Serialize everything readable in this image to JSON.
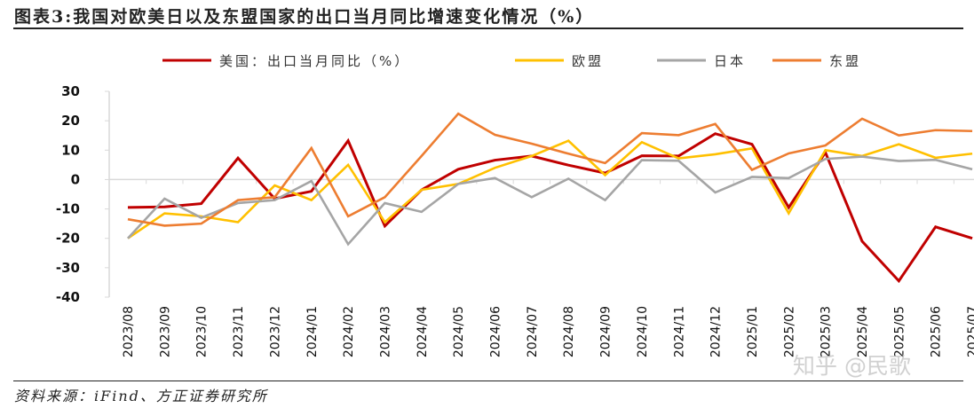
{
  "title": "图表3:我国对欧美日以及东盟国家的出口当月同比增速变化情况（%）",
  "source": "资料来源：iFind、方正证券研究所",
  "watermark": "知乎 @民歌",
  "chart_data": {
    "type": "line",
    "title": "图表3:我国对欧美日以及东盟国家的出口当月同比增速变化情况（%）",
    "xlabel": "",
    "ylabel": "",
    "ylim": [
      -40,
      30
    ],
    "yticks": [
      "30",
      "20",
      "10",
      "0",
      "-10",
      "-20",
      "-30",
      "-40"
    ],
    "grid": "zero-line only",
    "legend_position": "top",
    "x": [
      "2023/08",
      "2023/09",
      "2023/10",
      "2023/11",
      "2023/12",
      "2024/01",
      "2024/02",
      "2024/03",
      "2024/04",
      "2024/05",
      "2024/06",
      "2024/07",
      "2024/08",
      "2024/09",
      "2024/10",
      "2024/11",
      "2024/12",
      "2025/01",
      "2025/02",
      "2025/03",
      "2025/04",
      "2025/05",
      "2025/06",
      "2025/07"
    ],
    "series": [
      {
        "name": "美国：出口当月同比（%）",
        "color": "#c00000",
        "values": [
          -9.5,
          -9.3,
          -8.2,
          7.3,
          -6.5,
          -4,
          13.2,
          -15.8,
          -3.5,
          3.5,
          6.6,
          8,
          4.9,
          2.2,
          8.1,
          8,
          15.6,
          12,
          -9.5,
          9.2,
          -21,
          -34.5,
          -16.1,
          -20
        ]
      },
      {
        "name": "欧盟",
        "color": "#ffc000",
        "values": [
          -20,
          -11.5,
          -12.5,
          -14.5,
          -2,
          -7,
          5,
          -14.5,
          -3.5,
          -1.5,
          4,
          8,
          13.2,
          1.5,
          12.7,
          7.2,
          8.6,
          10.6,
          -11.5,
          10,
          8,
          12,
          7.4,
          8.8
        ]
      },
      {
        "name": "日本",
        "color": "#a5a5a5",
        "values": [
          -20,
          -6.5,
          -13,
          -8,
          -7,
          -0.5,
          -22,
          -8,
          -11,
          -1.5,
          0.5,
          -6,
          0.3,
          -7,
          6.6,
          6.4,
          -4.4,
          0.9,
          0.5,
          7,
          7.8,
          6.3,
          6.7,
          3.5
        ]
      },
      {
        "name": "东盟",
        "color": "#ed7d31",
        "values": [
          -13.5,
          -15.7,
          -15,
          -7,
          -6,
          10.7,
          -12.5,
          -6,
          8,
          22.4,
          15.2,
          12.2,
          8.8,
          5.6,
          15.8,
          15.1,
          18.9,
          3.3,
          8.9,
          11.6,
          20.7,
          15,
          16.8,
          16.5
        ]
      }
    ]
  }
}
